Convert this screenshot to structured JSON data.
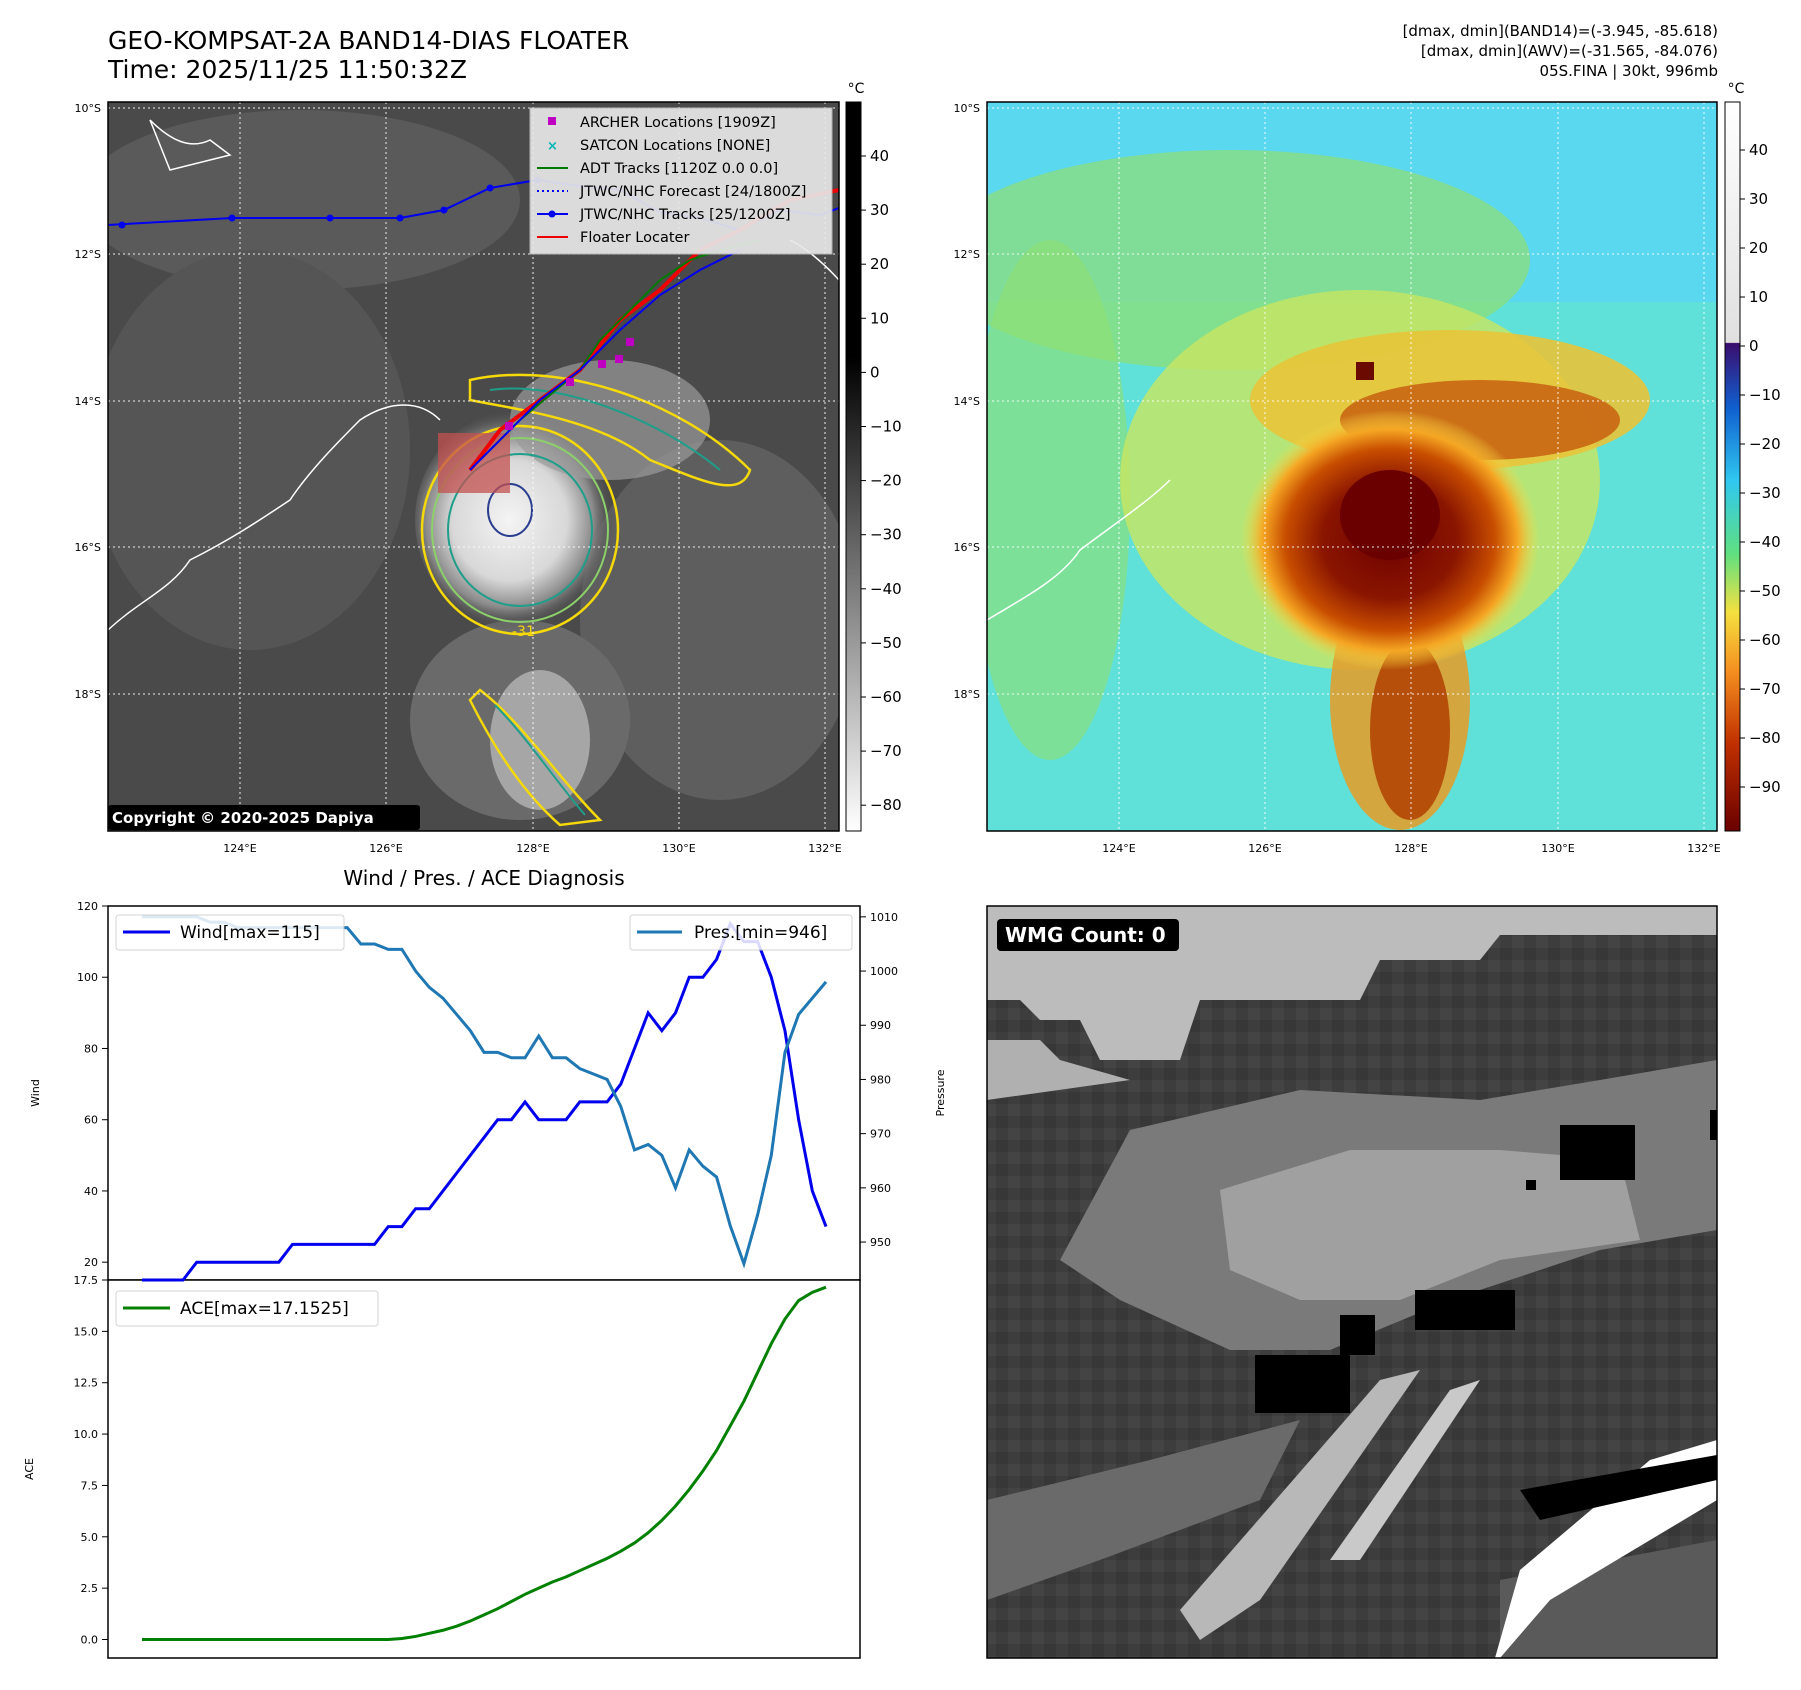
{
  "header": {
    "title_line1": "GEO-KOMPSAT-2A BAND14-DIAS FLOATER",
    "title_line2": "Time: 2025/11/25 11:50:32Z",
    "info_line1": "[dmax, dmin](BAND14)=(-3.945, -85.618)",
    "info_line2": "[dmax, dmin](AWV)=(-31.565, -84.076)",
    "info_line3": "05S.FINA | 30kt, 996mb"
  },
  "map_panel": {
    "lat_labels": [
      "10°S",
      "12°S",
      "14°S",
      "16°S",
      "18°S"
    ],
    "lon_labels": [
      "124°E",
      "126°E",
      "128°E",
      "130°E",
      "132°E"
    ],
    "copyright": "Copyright © 2020-2025 Dapiya",
    "legend": [
      {
        "label": "ARCHER Locations [1909Z]",
        "color": "#c000c0",
        "marker": "square"
      },
      {
        "label": "SATCON Locations [NONE]",
        "color": "#00b5b5",
        "marker": "x"
      },
      {
        "label": "ADT Tracks [1120Z 0.0 0.0]",
        "color": "#007a00",
        "marker": "line"
      },
      {
        "label": "JTWC/NHC Forecast [24/1800Z]",
        "color": "#0000ee",
        "marker": "dotted"
      },
      {
        "label": "JTWC/NHC Tracks [25/1200Z]",
        "color": "#0000ee",
        "marker": "line-dot"
      },
      {
        "label": "Floater Locater",
        "color": "#ee0000",
        "marker": "line"
      }
    ],
    "contour_label": "-31"
  },
  "colorbar_gray": {
    "unit": "°C",
    "ticks": [
      "40",
      "30",
      "20",
      "10",
      "0",
      "−10",
      "−20",
      "−30",
      "−40",
      "−50",
      "−60",
      "−70",
      "−80"
    ]
  },
  "colorbar_awv": {
    "unit": "°C",
    "ticks": [
      "40",
      "30",
      "20",
      "10",
      "0",
      "−10",
      "−20",
      "−30",
      "−40",
      "−50",
      "−60",
      "−70",
      "−80",
      "−90"
    ]
  },
  "wmg_panel": {
    "label": "WMG Count: 0"
  },
  "chart_data": [
    {
      "type": "line",
      "title": "Wind / Pres. / ACE Diagnosis",
      "ylabel": "Wind",
      "ylabel_right": "Pressure",
      "ylim": [
        15,
        120
      ],
      "ylim_right": [
        943,
        1012
      ],
      "yticks": [
        20,
        40,
        60,
        80,
        100,
        120
      ],
      "yticks_right": [
        950,
        960,
        970,
        980,
        990,
        1000,
        1010
      ],
      "series": [
        {
          "name": "Wind[max=115]",
          "axis": "left",
          "color": "#0000ee",
          "x": [
            0,
            1,
            2,
            3,
            4,
            5,
            6,
            7,
            8,
            9,
            10,
            11,
            12,
            13,
            14,
            15,
            16,
            17,
            18,
            19,
            20,
            21,
            22,
            23,
            24,
            25,
            26,
            27,
            28,
            29,
            30,
            31,
            32,
            33,
            34,
            35,
            36,
            37,
            38,
            39,
            40,
            41,
            42,
            43,
            44,
            45,
            46,
            47,
            48,
            49,
            50
          ],
          "values": [
            15,
            15,
            15,
            15,
            20,
            20,
            20,
            20,
            20,
            20,
            20,
            25,
            25,
            25,
            25,
            25,
            25,
            25,
            30,
            30,
            35,
            35,
            40,
            45,
            50,
            55,
            60,
            60,
            65,
            60,
            60,
            60,
            65,
            65,
            65,
            70,
            80,
            90,
            85,
            90,
            100,
            100,
            105,
            115,
            110,
            110,
            100,
            85,
            60,
            40,
            30
          ]
        },
        {
          "name": "Pres.[min=946]",
          "axis": "right",
          "color": "#1f77b4",
          "x": [
            0,
            1,
            2,
            3,
            4,
            5,
            6,
            7,
            8,
            9,
            10,
            11,
            12,
            13,
            14,
            15,
            16,
            17,
            18,
            19,
            20,
            21,
            22,
            23,
            24,
            25,
            26,
            27,
            28,
            29,
            30,
            31,
            32,
            33,
            34,
            35,
            36,
            37,
            38,
            39,
            40,
            41,
            42,
            43,
            44,
            45,
            46,
            47,
            48,
            49,
            50
          ],
          "values": [
            1010,
            1010,
            1010,
            1010,
            1010,
            1009,
            1009,
            1008,
            1008,
            1008,
            1008,
            1008,
            1008,
            1008,
            1008,
            1008,
            1005,
            1005,
            1004,
            1004,
            1000,
            997,
            995,
            992,
            989,
            985,
            985,
            984,
            984,
            988,
            984,
            984,
            982,
            981,
            980,
            975,
            967,
            968,
            966,
            960,
            967,
            964,
            962,
            953,
            946,
            955,
            966,
            985,
            992,
            995,
            998
          ]
        }
      ]
    },
    {
      "type": "line",
      "ylabel": "ACE",
      "ylim": [
        -0.9,
        17.5
      ],
      "yticks": [
        0.0,
        2.5,
        5.0,
        7.5,
        10.0,
        12.5,
        15.0,
        17.5
      ],
      "series": [
        {
          "name": "ACE[max=17.1525]",
          "color": "#008000",
          "x": [
            0,
            1,
            2,
            3,
            4,
            5,
            6,
            7,
            8,
            9,
            10,
            11,
            12,
            13,
            14,
            15,
            16,
            17,
            18,
            19,
            20,
            21,
            22,
            23,
            24,
            25,
            26,
            27,
            28,
            29,
            30,
            31,
            32,
            33,
            34,
            35,
            36,
            37,
            38,
            39,
            40,
            41,
            42,
            43,
            44,
            45,
            46,
            47,
            48,
            49,
            50
          ],
          "values": [
            0,
            0,
            0,
            0,
            0,
            0,
            0,
            0,
            0,
            0,
            0,
            0,
            0,
            0,
            0,
            0,
            0,
            0,
            0,
            0.05,
            0.15,
            0.3,
            0.45,
            0.65,
            0.9,
            1.2,
            1.5,
            1.85,
            2.2,
            2.5,
            2.8,
            3.05,
            3.35,
            3.65,
            3.95,
            4.3,
            4.7,
            5.2,
            5.8,
            6.5,
            7.3,
            8.2,
            9.2,
            10.4,
            11.6,
            13.0,
            14.4,
            15.6,
            16.5,
            16.9,
            17.15
          ]
        }
      ]
    }
  ]
}
